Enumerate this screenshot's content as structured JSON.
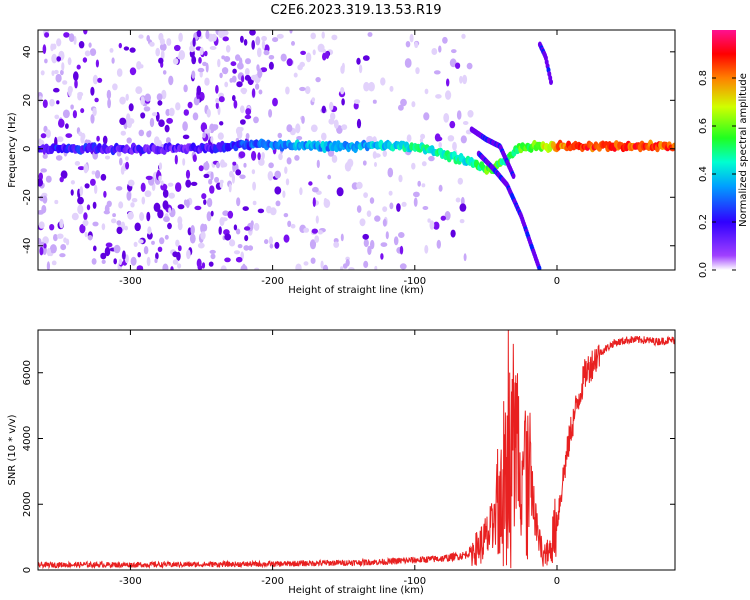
{
  "title": "C2E6.2023.319.13.53.R19",
  "chart_data": [
    {
      "type": "heatmap",
      "xlabel": "Height of straight line (km)",
      "ylabel": "Frequency (Hz)",
      "xlim": [
        -365,
        83
      ],
      "ylim": [
        -50,
        49
      ],
      "xticks": [
        -300,
        -200,
        -100,
        0
      ],
      "yticks": [
        -40,
        -20,
        0,
        20,
        40
      ],
      "colorbar": {
        "label": "Normalized spectral amplitude",
        "range": [
          0.0,
          1.0
        ],
        "ticks": [
          "0.0",
          "0.2",
          "0.4",
          "0.6",
          "0.8"
        ],
        "colors": [
          "#ffffff",
          "#7a00ff",
          "#0000ff",
          "#00d0ff",
          "#00ff40",
          "#ffff00",
          "#ff8000",
          "#ff0000",
          "#ff1090"
        ]
      },
      "ridge": {
        "x": [
          -365,
          -340,
          -300,
          -250,
          -210,
          -180,
          -150,
          -120,
          -100,
          -80,
          -65,
          -55,
          -45,
          -35,
          -25,
          -15,
          -5,
          0,
          20,
          40,
          60,
          83
        ],
        "y": [
          0,
          0,
          0,
          0,
          2,
          1,
          1,
          1,
          1,
          -2,
          -5,
          -7,
          -9,
          -4,
          1,
          1,
          1,
          1,
          1,
          1,
          1,
          1
        ],
        "amplitude": [
          0.2,
          0.2,
          0.15,
          0.15,
          0.3,
          0.35,
          0.35,
          0.4,
          0.45,
          0.45,
          0.45,
          0.5,
          0.6,
          0.5,
          0.55,
          0.6,
          0.7,
          0.8,
          0.85,
          0.85,
          0.85,
          0.85
        ]
      },
      "branches": [
        {
          "x": [
            -60,
            -50,
            -40,
            -30
          ],
          "y": [
            8,
            4,
            1,
            -12
          ]
        },
        {
          "x": [
            -55,
            -45,
            -35,
            -25,
            -18,
            -12
          ],
          "y": [
            -2,
            -8,
            -15,
            -28,
            -40,
            -50
          ]
        },
        {
          "x": [
            -12,
            -8,
            -4
          ],
          "y": [
            43,
            38,
            27
          ]
        }
      ]
    },
    {
      "type": "line",
      "xlabel": "Height of straight line (km)",
      "ylabel": "SNR (10 * v/v)",
      "xlim": [
        -365,
        83
      ],
      "ylim": [
        0,
        7300
      ],
      "xticks": [
        -300,
        -200,
        -100,
        0
      ],
      "yticks": [
        0,
        2000,
        4000,
        6000
      ],
      "color": "#e82020",
      "series": [
        {
          "name": "SNR",
          "x": [
            -365,
            -350,
            -300,
            -250,
            -200,
            -180,
            -150,
            -120,
            -100,
            -80,
            -65,
            -55,
            -45,
            -40,
            -35,
            -30,
            -25,
            -20,
            -15,
            -10,
            -5,
            0,
            5,
            10,
            15,
            20,
            30,
            40,
            50,
            60,
            70,
            83
          ],
          "y": [
            150,
            160,
            160,
            170,
            180,
            200,
            220,
            250,
            300,
            350,
            450,
            700,
            1200,
            2500,
            4500,
            4000,
            3500,
            3000,
            1500,
            400,
            600,
            1500,
            3000,
            4300,
            5200,
            6000,
            6600,
            6900,
            7000,
            7000,
            6950,
            7000
          ]
        }
      ]
    }
  ]
}
